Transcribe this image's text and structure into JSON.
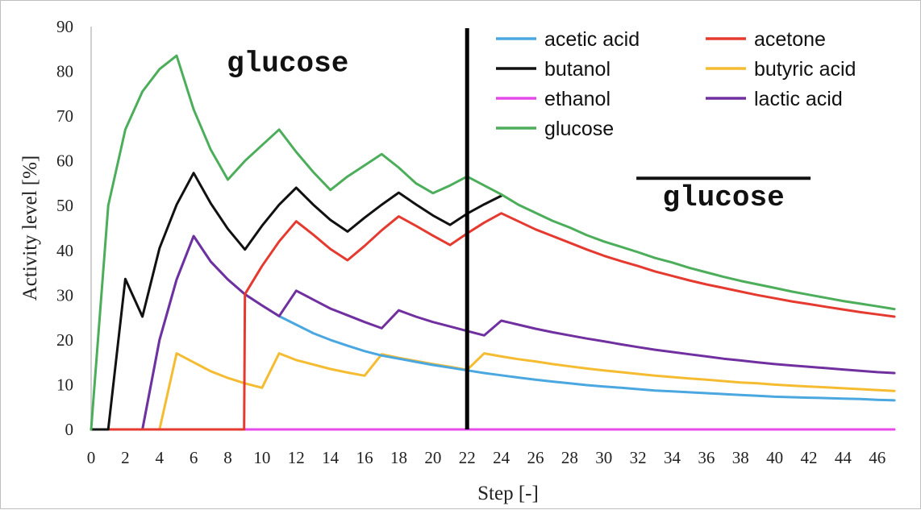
{
  "chart_data": {
    "type": "line",
    "title": "",
    "xlabel": "Step [-]",
    "ylabel": "Activity level [%]",
    "xlim": [
      0,
      47
    ],
    "ylim": [
      0,
      90
    ],
    "x_ticks": [
      0,
      2,
      4,
      6,
      8,
      10,
      12,
      14,
      16,
      18,
      20,
      22,
      24,
      26,
      28,
      30,
      32,
      34,
      36,
      38,
      40,
      42,
      44,
      46
    ],
    "y_ticks": [
      0,
      10,
      20,
      30,
      40,
      50,
      60,
      70,
      80,
      90
    ],
    "grid": false,
    "legend_position": "top-right",
    "vertical_line": {
      "x": 22,
      "color": "#000000"
    },
    "annotations": [
      {
        "text": "glucose",
        "x": 11.5,
        "y": 80,
        "overline": false
      },
      {
        "text": "glucose",
        "x": 37,
        "y": 50,
        "overline": true
      }
    ],
    "series": [
      {
        "name": "acetic acid",
        "color": "#4aa7e0",
        "points": [
          [
            0,
            0
          ],
          [
            3,
            0
          ],
          [
            4,
            20
          ],
          [
            5,
            33.5
          ],
          [
            6,
            43.2
          ],
          [
            7,
            37.5
          ],
          [
            8,
            33.5
          ],
          [
            9,
            30.2
          ],
          [
            10,
            27.7
          ],
          [
            11,
            25.3
          ],
          [
            12,
            23.4
          ],
          [
            13,
            21.5
          ],
          [
            14,
            20
          ],
          [
            15,
            18.7
          ],
          [
            16,
            17.5
          ],
          [
            17,
            16.5
          ],
          [
            18,
            15.8
          ],
          [
            19,
            15.1
          ],
          [
            20,
            14.4
          ],
          [
            21,
            13.8
          ],
          [
            22,
            13.2
          ],
          [
            23,
            12.6
          ],
          [
            24,
            12.1
          ],
          [
            25,
            11.6
          ],
          [
            26,
            11.1
          ],
          [
            27,
            10.7
          ],
          [
            28,
            10.3
          ],
          [
            29,
            9.9
          ],
          [
            30,
            9.6
          ],
          [
            31,
            9.3
          ],
          [
            32,
            9
          ],
          [
            33,
            8.7
          ],
          [
            34,
            8.5
          ],
          [
            35,
            8.3
          ],
          [
            36,
            8.1
          ],
          [
            37,
            7.9
          ],
          [
            38,
            7.7
          ],
          [
            39,
            7.5
          ],
          [
            40,
            7.3
          ],
          [
            41,
            7.2
          ],
          [
            42,
            7.1
          ],
          [
            43,
            7
          ],
          [
            44,
            6.9
          ],
          [
            45,
            6.8
          ],
          [
            46,
            6.6
          ],
          [
            47,
            6.5
          ]
        ]
      },
      {
        "name": "acetone",
        "color": "#e53a2f",
        "points": [
          [
            0,
            0
          ],
          [
            8.95,
            0
          ],
          [
            9,
            30.2
          ],
          [
            10,
            36.5
          ],
          [
            11,
            42
          ],
          [
            12,
            46.5
          ],
          [
            13,
            43.5
          ],
          [
            14,
            40.3
          ],
          [
            15,
            37.8
          ],
          [
            16,
            41
          ],
          [
            17,
            44.5
          ],
          [
            18,
            47.6
          ],
          [
            19,
            45.5
          ],
          [
            20,
            43.3
          ],
          [
            21,
            41.2
          ],
          [
            22,
            43.8
          ],
          [
            23,
            46.2
          ],
          [
            24,
            48.3
          ],
          [
            25,
            46.5
          ],
          [
            26,
            44.7
          ],
          [
            27,
            43.2
          ],
          [
            28,
            41.7
          ],
          [
            29,
            40.2
          ],
          [
            30,
            38.8
          ],
          [
            31,
            37.6
          ],
          [
            32,
            36.5
          ],
          [
            33,
            35.3
          ],
          [
            34,
            34.3
          ],
          [
            35,
            33.3
          ],
          [
            36,
            32.4
          ],
          [
            37,
            31.6
          ],
          [
            38,
            30.8
          ],
          [
            39,
            30
          ],
          [
            40,
            29.3
          ],
          [
            41,
            28.6
          ],
          [
            42,
            28
          ],
          [
            43,
            27.4
          ],
          [
            44,
            26.8
          ],
          [
            45,
            26.2
          ],
          [
            46,
            25.7
          ],
          [
            47,
            25.2
          ]
        ]
      },
      {
        "name": "butanol",
        "color": "#111111",
        "points": [
          [
            0,
            0
          ],
          [
            1,
            0
          ],
          [
            2,
            33.6
          ],
          [
            3,
            25.2
          ],
          [
            4,
            40.5
          ],
          [
            5,
            50.2
          ],
          [
            6,
            57.3
          ],
          [
            7,
            50.5
          ],
          [
            8,
            44.8
          ],
          [
            9,
            40.2
          ],
          [
            10,
            45.5
          ],
          [
            11,
            50.2
          ],
          [
            12,
            54
          ],
          [
            13,
            50.2
          ],
          [
            14,
            46.8
          ],
          [
            15,
            44.2
          ],
          [
            16,
            47.3
          ],
          [
            17,
            50.2
          ],
          [
            18,
            52.9
          ],
          [
            19,
            50.3
          ],
          [
            20,
            47.8
          ],
          [
            21,
            45.7
          ],
          [
            22,
            48.2
          ],
          [
            23,
            50.3
          ],
          [
            24,
            52.2
          ]
        ]
      },
      {
        "name": "butyric acid",
        "color": "#f5bc32",
        "points": [
          [
            0,
            0
          ],
          [
            4,
            0
          ],
          [
            5,
            17
          ],
          [
            6,
            15
          ],
          [
            7,
            13
          ],
          [
            8,
            11.5
          ],
          [
            9,
            10.3
          ],
          [
            10,
            9.3
          ],
          [
            11,
            17
          ],
          [
            12,
            15.5
          ],
          [
            13,
            14.5
          ],
          [
            14,
            13.5
          ],
          [
            15,
            12.7
          ],
          [
            16,
            12
          ],
          [
            17,
            16.8
          ],
          [
            18,
            16
          ],
          [
            19,
            15.3
          ],
          [
            20,
            14.6
          ],
          [
            21,
            14
          ],
          [
            22,
            13.3
          ],
          [
            23,
            17
          ],
          [
            24,
            16.3
          ],
          [
            25,
            15.7
          ],
          [
            26,
            15.2
          ],
          [
            27,
            14.6
          ],
          [
            28,
            14.1
          ],
          [
            29,
            13.6
          ],
          [
            30,
            13.2
          ],
          [
            31,
            12.8
          ],
          [
            32,
            12.4
          ],
          [
            33,
            12
          ],
          [
            34,
            11.7
          ],
          [
            35,
            11.4
          ],
          [
            36,
            11.1
          ],
          [
            37,
            10.8
          ],
          [
            38,
            10.5
          ],
          [
            39,
            10.3
          ],
          [
            40,
            10
          ],
          [
            41,
            9.8
          ],
          [
            42,
            9.6
          ],
          [
            43,
            9.4
          ],
          [
            44,
            9.2
          ],
          [
            45,
            9
          ],
          [
            46,
            8.8
          ],
          [
            47,
            8.6
          ]
        ]
      },
      {
        "name": "ethanol",
        "color": "#e44be8",
        "points": [
          [
            0,
            0
          ],
          [
            47,
            0
          ]
        ]
      },
      {
        "name": "lactic acid",
        "color": "#7030a0",
        "points": [
          [
            0,
            0
          ],
          [
            3,
            0
          ],
          [
            4,
            20
          ],
          [
            5,
            33.5
          ],
          [
            6,
            43.2
          ],
          [
            7,
            37.5
          ],
          [
            8,
            33.5
          ],
          [
            9,
            30.2
          ],
          [
            10,
            27.7
          ],
          [
            11,
            25.3
          ],
          [
            12,
            31
          ],
          [
            13,
            29
          ],
          [
            14,
            27
          ],
          [
            15,
            25.5
          ],
          [
            16,
            24
          ],
          [
            17,
            22.6
          ],
          [
            18,
            26.6
          ],
          [
            19,
            25.2
          ],
          [
            20,
            24
          ],
          [
            21,
            23
          ],
          [
            22,
            22
          ],
          [
            23,
            21
          ],
          [
            24,
            24.3
          ],
          [
            25,
            23.4
          ],
          [
            26,
            22.5
          ],
          [
            27,
            21.7
          ],
          [
            28,
            21
          ],
          [
            29,
            20.3
          ],
          [
            30,
            19.7
          ],
          [
            31,
            19
          ],
          [
            32,
            18.4
          ],
          [
            33,
            17.8
          ],
          [
            34,
            17.3
          ],
          [
            35,
            16.8
          ],
          [
            36,
            16.3
          ],
          [
            37,
            15.8
          ],
          [
            38,
            15.4
          ],
          [
            39,
            15
          ],
          [
            40,
            14.6
          ],
          [
            41,
            14.3
          ],
          [
            42,
            14
          ],
          [
            43,
            13.7
          ],
          [
            44,
            13.4
          ],
          [
            45,
            13.1
          ],
          [
            46,
            12.8
          ],
          [
            47,
            12.6
          ]
        ]
      },
      {
        "name": "glucose",
        "color": "#4cad5b",
        "points": [
          [
            0,
            0
          ],
          [
            1,
            50
          ],
          [
            2,
            67
          ],
          [
            3,
            75.5
          ],
          [
            4,
            80.5
          ],
          [
            5,
            83.5
          ],
          [
            6,
            71.5
          ],
          [
            7,
            62.5
          ],
          [
            8,
            55.8
          ],
          [
            9,
            60
          ],
          [
            10,
            63.5
          ],
          [
            11,
            67
          ],
          [
            12,
            62
          ],
          [
            13,
            57.5
          ],
          [
            14,
            53.5
          ],
          [
            15,
            56.5
          ],
          [
            16,
            59
          ],
          [
            17,
            61.5
          ],
          [
            18,
            58.5
          ],
          [
            19,
            55
          ],
          [
            20,
            52.8
          ],
          [
            21,
            54.5
          ],
          [
            22,
            56.5
          ],
          [
            23,
            54.5
          ],
          [
            24,
            52.5
          ],
          [
            25,
            50.2
          ],
          [
            26,
            48.4
          ],
          [
            27,
            46.6
          ],
          [
            28,
            45.1
          ],
          [
            29,
            43.4
          ],
          [
            30,
            42
          ],
          [
            31,
            40.8
          ],
          [
            32,
            39.6
          ],
          [
            33,
            38.3
          ],
          [
            34,
            37.3
          ],
          [
            35,
            36.1
          ],
          [
            36,
            35.1
          ],
          [
            37,
            34.1
          ],
          [
            38,
            33.2
          ],
          [
            39,
            32.4
          ],
          [
            40,
            31.6
          ],
          [
            41,
            30.8
          ],
          [
            42,
            30.1
          ],
          [
            43,
            29.4
          ],
          [
            44,
            28.7
          ],
          [
            45,
            28.1
          ],
          [
            46,
            27.5
          ],
          [
            47,
            26.9
          ]
        ]
      }
    ]
  }
}
